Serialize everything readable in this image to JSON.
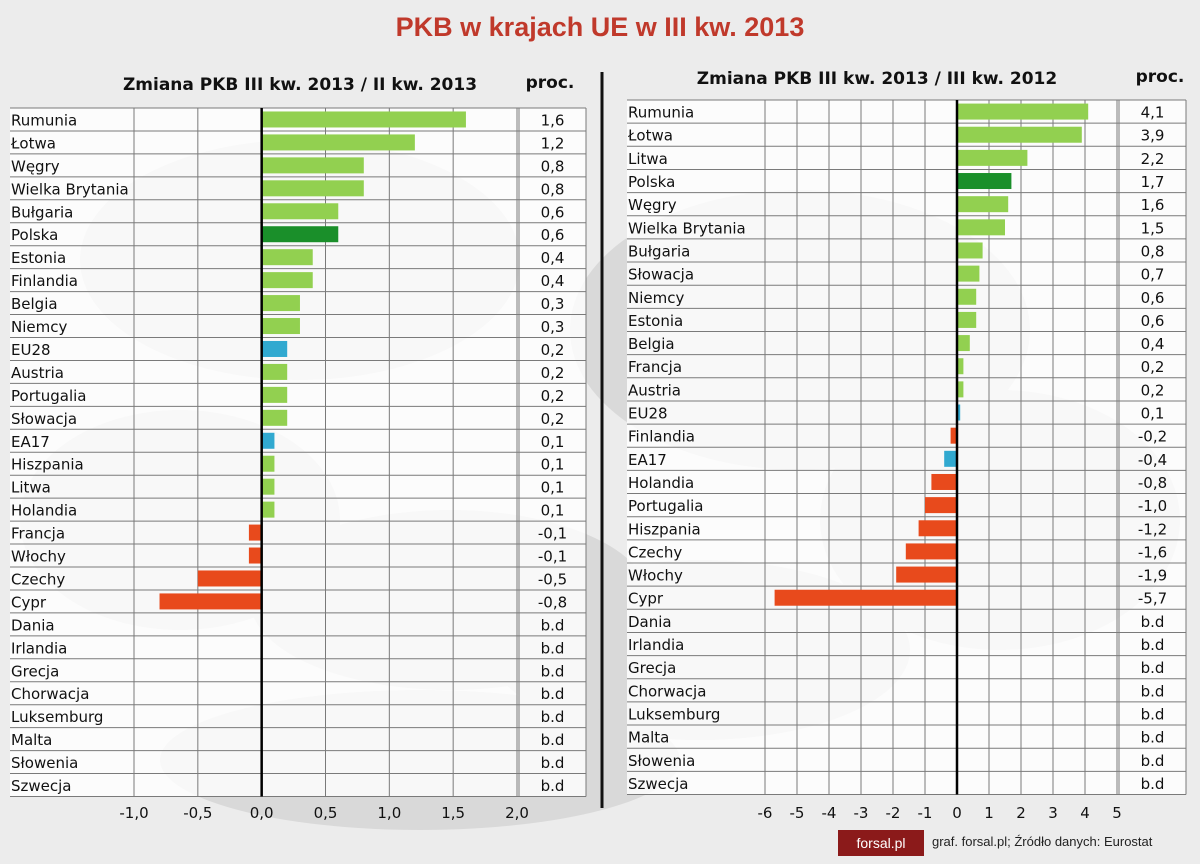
{
  "title": "PKB w krajach UE w III kw. 2013",
  "source": "graf. forsal.pl; Źródło danych: Eurostat",
  "logo_text": "forsal.pl",
  "colors": {
    "positive": "#92d050",
    "poland": "#1a8f2a",
    "aggregate": "#31a9d0",
    "negative": "#e84a1c",
    "title": "#c0392b"
  },
  "chart_data": [
    {
      "type": "bar",
      "orientation": "horizontal",
      "title": "Zmiana PKB III kw. 2013 / II kw. 2013",
      "unit_label": "proc.",
      "xlim": [
        -1.0,
        2.0
      ],
      "x_ticks": [
        "-1,0",
        "-0,5",
        "0,0",
        "0,5",
        "1,0",
        "1,5",
        "2,0"
      ],
      "categories": [
        "Rumunia",
        "Łotwa",
        "Węgry",
        "Wielka Brytania",
        "Bułgaria",
        "Polska",
        "Estonia",
        "Finlandia",
        "Belgia",
        "Niemcy",
        "EU28",
        "Austria",
        "Portugalia",
        "Słowacja",
        "EA17",
        "Hiszpania",
        "Litwa",
        "Holandia",
        "Francja",
        "Włochy",
        "Czechy",
        "Cypr",
        "Dania",
        "Irlandia",
        "Grecja",
        "Chorwacja",
        "Luksemburg",
        "Malta",
        "Słowenia",
        "Szwecja"
      ],
      "values": [
        1.6,
        1.2,
        0.8,
        0.8,
        0.6,
        0.6,
        0.4,
        0.4,
        0.3,
        0.3,
        0.2,
        0.2,
        0.2,
        0.2,
        0.1,
        0.1,
        0.1,
        0.1,
        -0.1,
        -0.1,
        -0.5,
        -0.8,
        null,
        null,
        null,
        null,
        null,
        null,
        null,
        null
      ],
      "labels": [
        "1,6",
        "1,2",
        "0,8",
        "0,8",
        "0,6",
        "0,6",
        "0,4",
        "0,4",
        "0,3",
        "0,3",
        "0,2",
        "0,2",
        "0,2",
        "0,2",
        "0,1",
        "0,1",
        "0,1",
        "0,1",
        "-0,1",
        "-0,1",
        "-0,5",
        "-0,8",
        "b.d",
        "b.d",
        "b.d",
        "b.d",
        "b.d",
        "b.d",
        "b.d",
        "b.d"
      ]
    },
    {
      "type": "bar",
      "orientation": "horizontal",
      "title": "Zmiana PKB III kw. 2013 / III kw. 2012",
      "unit_label": "proc.",
      "xlim": [
        -6,
        5
      ],
      "x_ticks": [
        "-6",
        "-5",
        "-4",
        "-3",
        "-2",
        "-1",
        "0",
        "1",
        "2",
        "3",
        "4",
        "5"
      ],
      "categories": [
        "Rumunia",
        "Łotwa",
        "Litwa",
        "Polska",
        "Węgry",
        "Wielka Brytania",
        "Bułgaria",
        "Słowacja",
        "Niemcy",
        "Estonia",
        "Belgia",
        "Francja",
        "Austria",
        "EU28",
        "Finlandia",
        "EA17",
        "Holandia",
        "Portugalia",
        "Hiszpania",
        "Czechy",
        "Włochy",
        "Cypr",
        "Dania",
        "Irlandia",
        "Grecja",
        "Chorwacja",
        "Luksemburg",
        "Malta",
        "Słowenia",
        "Szwecja"
      ],
      "values": [
        4.1,
        3.9,
        2.2,
        1.7,
        1.6,
        1.5,
        0.8,
        0.7,
        0.6,
        0.6,
        0.4,
        0.2,
        0.2,
        0.1,
        -0.2,
        -0.4,
        -0.8,
        -1.0,
        -1.2,
        -1.6,
        -1.9,
        -5.7,
        null,
        null,
        null,
        null,
        null,
        null,
        null,
        null
      ],
      "labels": [
        "4,1",
        "3,9",
        "2,2",
        "1,7",
        "1,6",
        "1,5",
        "0,8",
        "0,7",
        "0,6",
        "0,6",
        "0,4",
        "0,2",
        "0,2",
        "0,1",
        "-0,2",
        "-0,4",
        "-0,8",
        "-1,0",
        "-1,2",
        "-1,6",
        "-1,9",
        "-5,7",
        "b.d",
        "b.d",
        "b.d",
        "b.d",
        "b.d",
        "b.d",
        "b.d",
        "b.d"
      ]
    }
  ]
}
